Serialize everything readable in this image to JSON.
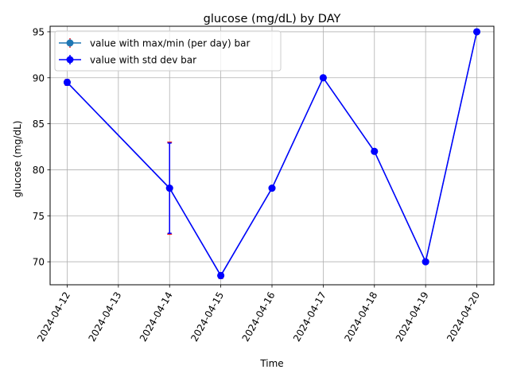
{
  "chart_data": {
    "type": "line",
    "title": "glucose (mg/dL) by DAY",
    "xlabel": "Time",
    "ylabel": "glucose (mg/dL)",
    "x": [
      "2024-04-12",
      "2024-04-14",
      "2024-04-15",
      "2024-04-16",
      "2024-04-17",
      "2024-04-18",
      "2024-04-19",
      "2024-04-20"
    ],
    "x_ticks": [
      "2024-04-12",
      "2024-04-13",
      "2024-04-14",
      "2024-04-15",
      "2024-04-16",
      "2024-04-17",
      "2024-04-18",
      "2024-04-19",
      "2024-04-20"
    ],
    "y_ticks": [
      70,
      75,
      80,
      85,
      90,
      95
    ],
    "xlim": [
      "2024-04-11T16:00",
      "2024-04-20T08:00"
    ],
    "ylim": [
      67.5,
      95.6
    ],
    "grid": true,
    "legend_position": "upper left",
    "series": [
      {
        "name": "value with max/min (per day) bar",
        "color": "#1f77b4",
        "errorbar_color": "#e8141f",
        "values": [
          89.5,
          78,
          68.5,
          78,
          90,
          82,
          70,
          95
        ],
        "err_low": [
          89.2,
          73,
          68.2,
          78,
          90,
          82,
          70,
          95
        ],
        "err_high": [
          89.8,
          83,
          68.8,
          78,
          90,
          82,
          70,
          95
        ]
      },
      {
        "name": "value with std dev bar",
        "color": "#0000ff",
        "values": [
          89.5,
          78,
          68.5,
          78,
          90,
          82,
          70,
          95
        ],
        "err_low": [
          89.2,
          73.1,
          68.2,
          78,
          90,
          82,
          70,
          95
        ],
        "err_high": [
          89.8,
          82.9,
          68.8,
          78,
          90,
          82,
          70,
          95
        ]
      }
    ]
  }
}
